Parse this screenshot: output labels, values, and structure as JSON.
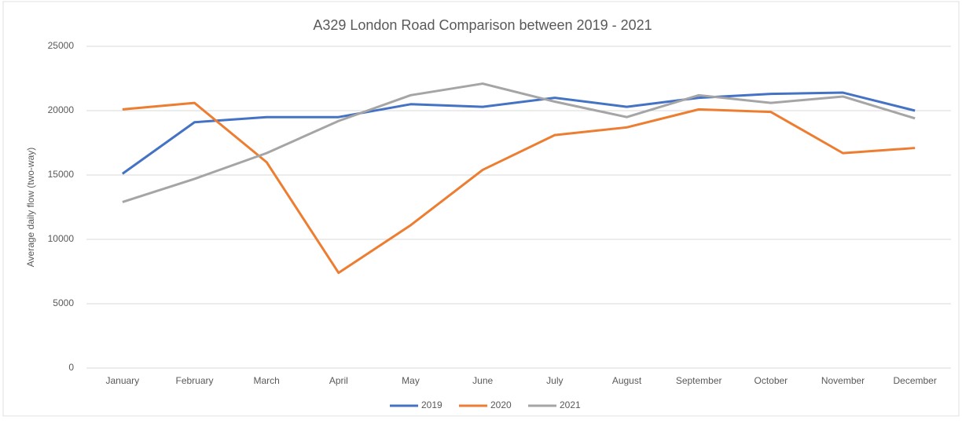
{
  "chart_data": {
    "type": "line",
    "title": "A329 London Road Comparison between 2019 - 2021",
    "y_label": "Average daily flow (two-way)",
    "categories": [
      "January",
      "February",
      "March",
      "April",
      "May",
      "June",
      "July",
      "August",
      "September",
      "October",
      "November",
      "December"
    ],
    "series": [
      {
        "name": "2019",
        "color": "#4472c4",
        "values": [
          15100,
          19100,
          19500,
          19500,
          20500,
          20300,
          21000,
          20300,
          21000,
          21300,
          21400,
          20000
        ]
      },
      {
        "name": "2020",
        "color": "#ed7d31",
        "values": [
          20100,
          20600,
          16000,
          7400,
          11100,
          15400,
          18100,
          18700,
          20100,
          19900,
          16700,
          17100
        ]
      },
      {
        "name": "2021",
        "color": "#a5a5a5",
        "values": [
          12900,
          14700,
          16700,
          19200,
          21200,
          22100,
          20700,
          19500,
          21200,
          20600,
          21100,
          19400
        ]
      }
    ],
    "ylim": [
      0,
      25000
    ],
    "yticks": [
      0,
      5000,
      10000,
      15000,
      20000,
      25000
    ],
    "grid": true,
    "legend": "bottom"
  }
}
